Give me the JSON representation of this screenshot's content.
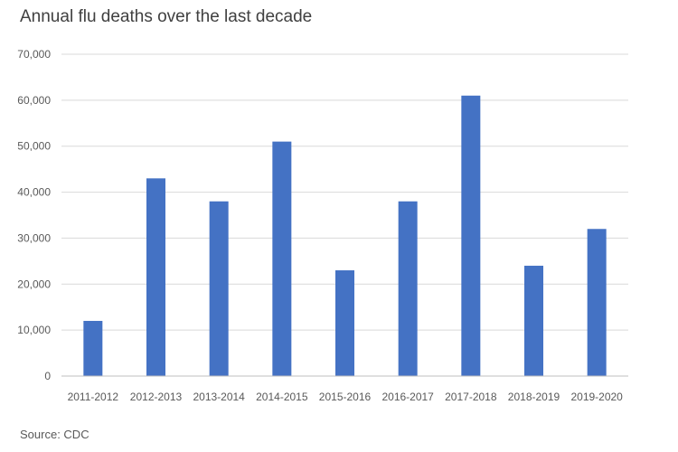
{
  "chart_data": {
    "type": "bar",
    "title": "Annual flu deaths over the last decade",
    "xlabel": "",
    "ylabel": "",
    "categories": [
      "2011-2012",
      "2012-2013",
      "2013-2014",
      "2014-2015",
      "2015-2016",
      "2016-2017",
      "2017-2018",
      "2018-2019",
      "2019-2020"
    ],
    "values": [
      12000,
      43000,
      38000,
      51000,
      23000,
      38000,
      61000,
      24000,
      32000
    ],
    "ylim": [
      0,
      70000
    ],
    "yticks": [
      "0",
      "10,000",
      "20,000",
      "30,000",
      "40,000",
      "50,000",
      "60,000",
      "70,000"
    ],
    "ytick_values": [
      0,
      10000,
      20000,
      30000,
      40000,
      50000,
      60000,
      70000
    ],
    "grid": true,
    "legend": "none",
    "bar_color": "#4472C4",
    "grid_color": "#d9d9d9",
    "axis_color": "#bfbfbf"
  },
  "source": "Source: CDC"
}
